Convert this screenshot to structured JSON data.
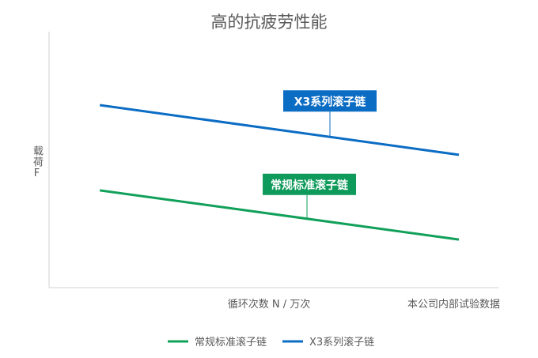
{
  "chart_data": {
    "type": "line",
    "title": "高的抗疲劳性能",
    "xlabel": "循环次数 N / 万次",
    "ylabel": "载荷F",
    "note": "本公司内部试验数据",
    "xlim": [
      0,
      100
    ],
    "ylim": [
      0,
      100
    ],
    "grid": false,
    "legend_placement": "bottom",
    "series": [
      {
        "name": "常规标准滚子链",
        "color": "#11a05a",
        "x": [
          11.3,
          91.2
        ],
        "y": [
          38.0,
          18.8
        ],
        "annotation": "常规标准滚子链",
        "annotation_color": "#0e9a5a",
        "annotation_x": 57.4
      },
      {
        "name": "X3系列滚子链",
        "color": "#0b6cc4",
        "x": [
          11.3,
          91.2
        ],
        "y": [
          71.3,
          51.9
        ],
        "annotation": "X3系列滚子链",
        "annotation_color": "#0b6cc4",
        "annotation_x": 62.5
      }
    ]
  }
}
